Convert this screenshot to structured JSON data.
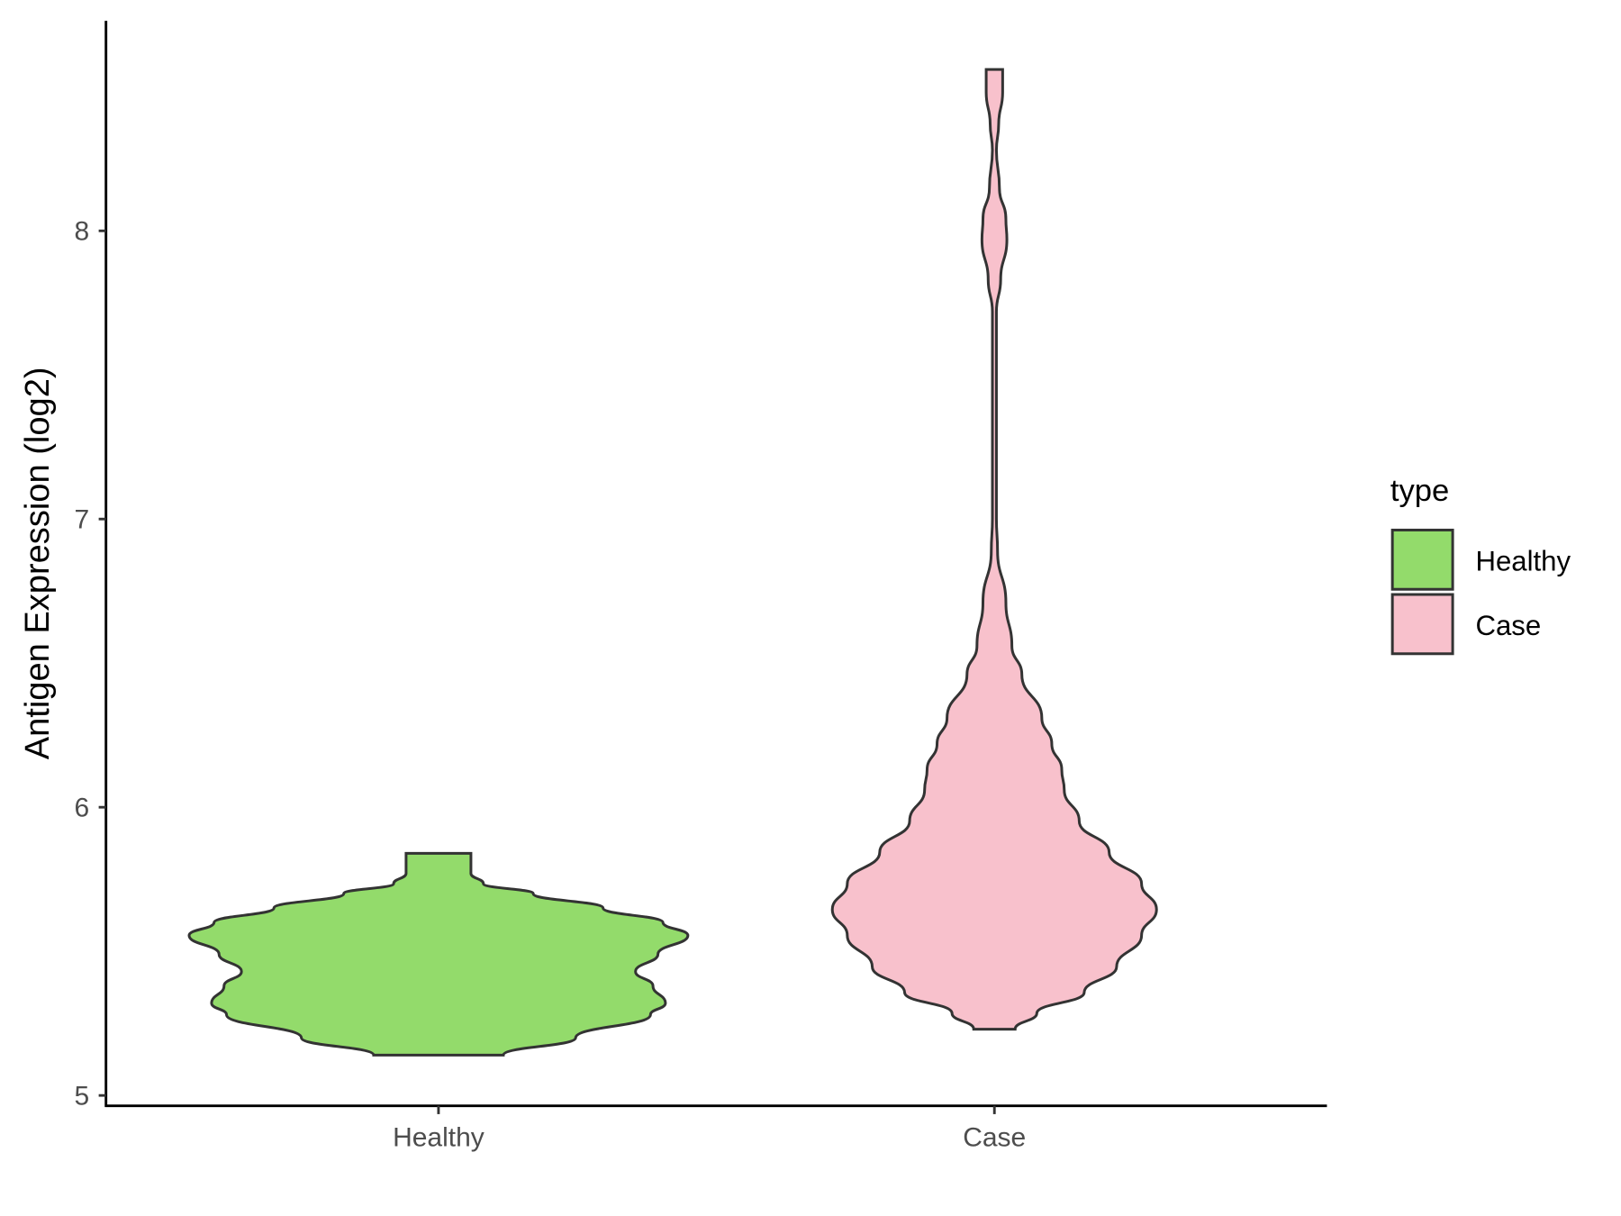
{
  "chart_data": {
    "type": "violin",
    "title": "",
    "xlabel": "",
    "ylabel": "Antigen Expression (log2)",
    "categories": [
      "Healthy",
      "Case"
    ],
    "ylim": [
      4.96,
      8.72
    ],
    "yticks": [
      5,
      6,
      7,
      8
    ],
    "grid": false,
    "legend": {
      "title": "type",
      "position": "right",
      "entries": [
        "Healthy",
        "Case"
      ]
    },
    "colors": {
      "Healthy": "#93DB6B",
      "Case": "#F8C1CC",
      "outline": "#333333"
    },
    "series": [
      {
        "name": "Healthy",
        "min": 5.14,
        "max": 5.84,
        "profile": [
          [
            5.14,
            0.26
          ],
          [
            5.2,
            0.55
          ],
          [
            5.28,
            0.85
          ],
          [
            5.32,
            0.91
          ],
          [
            5.38,
            0.86
          ],
          [
            5.43,
            0.79
          ],
          [
            5.49,
            0.88
          ],
          [
            5.555,
            1.0
          ],
          [
            5.6,
            0.9
          ],
          [
            5.65,
            0.66
          ],
          [
            5.7,
            0.38
          ],
          [
            5.735,
            0.18
          ],
          [
            5.77,
            0.13
          ],
          [
            5.84,
            0.13
          ]
        ]
      },
      {
        "name": "Case",
        "min": 5.23,
        "max": 8.56,
        "profile": [
          [
            5.23,
            0.083
          ],
          [
            5.285,
            0.17
          ],
          [
            5.357,
            0.36
          ],
          [
            5.447,
            0.49
          ],
          [
            5.555,
            0.59
          ],
          [
            5.645,
            0.65
          ],
          [
            5.735,
            0.59
          ],
          [
            5.844,
            0.46
          ],
          [
            5.952,
            0.34
          ],
          [
            6.06,
            0.28
          ],
          [
            6.13,
            0.27
          ],
          [
            6.22,
            0.23
          ],
          [
            6.31,
            0.19
          ],
          [
            6.46,
            0.11
          ],
          [
            6.56,
            0.07
          ],
          [
            6.71,
            0.046
          ],
          [
            6.89,
            0.0125
          ],
          [
            7.0,
            0.008
          ],
          [
            7.72,
            0.008
          ],
          [
            7.83,
            0.025
          ],
          [
            7.97,
            0.05
          ],
          [
            8.04,
            0.046
          ],
          [
            8.15,
            0.02
          ],
          [
            8.28,
            0.008
          ],
          [
            8.37,
            0.017
          ],
          [
            8.48,
            0.033
          ],
          [
            8.56,
            0.033
          ]
        ]
      }
    ]
  }
}
